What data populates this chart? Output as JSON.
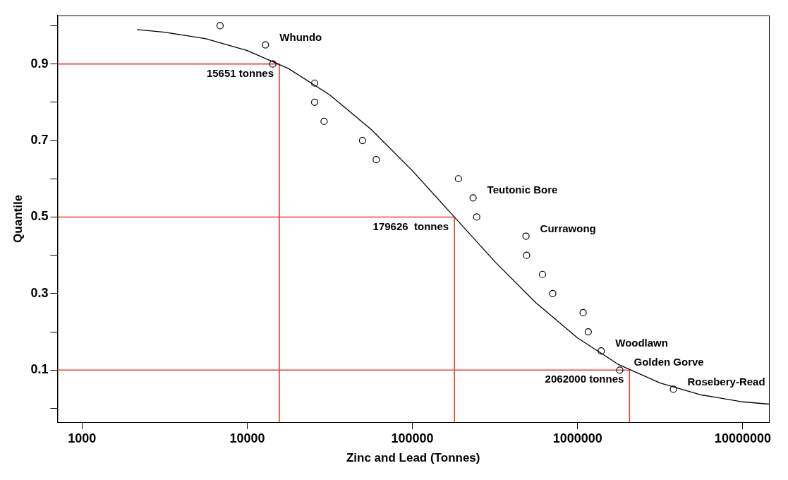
{
  "chart_data": {
    "type": "scatter",
    "xlabel": "Zinc and Lead (Tonnes)",
    "ylabel": "Quantile",
    "log": "x",
    "xlim": [
      710,
      14400000
    ],
    "xticks": [
      1000,
      10000,
      100000,
      1000000,
      10000000
    ],
    "ylim": [
      -0.036,
      1.027
    ],
    "yticks": [
      {
        "value": 0,
        "label": null
      },
      0.1,
      {
        "value": 0.2,
        "label": null
      },
      0.3,
      {
        "value": 0.4,
        "label": null
      },
      0.5,
      {
        "value": 0.6,
        "label": null
      },
      0.7,
      {
        "value": 0.8,
        "label": null
      },
      0.9,
      {
        "value": 1.0,
        "label": null
      }
    ],
    "series": [
      {
        "type": "line",
        "color": "#000000",
        "marker": "none",
        "x": [
          2150,
          3162,
          5623,
          10000,
          17783,
          31623,
          56234,
          100000,
          177828,
          316228,
          562341,
          1000000,
          1778279,
          3162278,
          5623413,
          10000000,
          14400000
        ],
        "values": [
          0.99,
          0.983,
          0.966,
          0.935,
          0.888,
          0.819,
          0.729,
          0.621,
          0.502,
          0.383,
          0.275,
          0.184,
          0.114,
          0.066,
          0.035,
          0.017,
          0.011
        ]
      },
      {
        "type": "scatter",
        "color": "#000000",
        "marker": "circle",
        "x": [
          6850,
          12900,
          14300,
          25600,
          25600,
          29200,
          49900,
          60400,
          190000,
          233000,
          245000,
          487000,
          491000,
          613000,
          707000,
          1080000,
          1160000,
          1390000,
          1800000,
          3800000
        ],
        "values": [
          1.0,
          0.95,
          0.9,
          0.85,
          0.8,
          0.75,
          0.7,
          0.65,
          0.6,
          0.55,
          0.5,
          0.45,
          0.4,
          0.35,
          0.3,
          0.25,
          0.2,
          0.15,
          0.1,
          0.05
        ]
      },
      {
        "type": "line",
        "color": "#f04030",
        "marker": "none",
        "x": [
          710,
          15651,
          15651
        ],
        "values": [
          0.9,
          0.9,
          -0.036
        ]
      },
      {
        "type": "line",
        "color": "#f04030",
        "marker": "none",
        "x": [
          710,
          179626,
          179626
        ],
        "values": [
          0.5,
          0.5,
          -0.036
        ]
      },
      {
        "type": "line",
        "color": "#f04030",
        "marker": "none",
        "x": [
          710,
          2062000,
          2062000
        ],
        "values": [
          0.1,
          0.1,
          -0.036
        ]
      }
    ],
    "annotations": [
      {
        "text": "15651 tonnes",
        "x": 15651,
        "y": 0.9
      },
      {
        "text": "179626  tonnes",
        "x": 179626,
        "y": 0.5
      },
      {
        "text": "2062000 tonnes",
        "x": 2062000,
        "y": 0.1
      },
      {
        "text": "Whundo",
        "x": 12900,
        "y": 0.95
      },
      {
        "text": "Teutonic Bore",
        "x": 233000,
        "y": 0.55
      },
      {
        "text": "Currawong",
        "x": 487000,
        "y": 0.45
      },
      {
        "text": "Woodlawn",
        "x": 1390000,
        "y": 0.15
      },
      {
        "text": "Golden Gorve",
        "x": 1800000,
        "y": 0.1
      },
      {
        "text": "Rosebery-Read",
        "x": 3800000,
        "y": 0.05
      }
    ],
    "legend": false
  }
}
